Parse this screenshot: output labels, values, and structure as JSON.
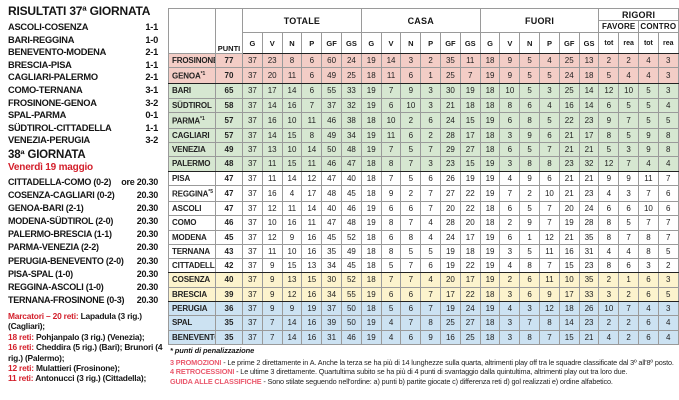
{
  "colors": {
    "accent_red": "#d31f2b",
    "note_label_red": "#ea5a6e",
    "zone_promotion": "#f3cdc6",
    "zone_playoff": "#d6e7d1",
    "zone_playout": "#fcf3cd",
    "zone_relegation": "#cce2f2"
  },
  "results_section": {
    "title": "RISULTATI 37ª GIORNATA",
    "matches": [
      {
        "teams": "ASCOLI-COSENZA",
        "score": "1-1"
      },
      {
        "teams": "BARI-REGGINA",
        "score": "1-0"
      },
      {
        "teams": "BENEVENTO-MODENA",
        "score": "2-1"
      },
      {
        "teams": "BRESCIA-PISA",
        "score": "1-1"
      },
      {
        "teams": "CAGLIARI-PALERMO",
        "score": "2-1"
      },
      {
        "teams": "COMO-TERNANA",
        "score": "3-1"
      },
      {
        "teams": "FROSINONE-GENOA",
        "score": "3-2"
      },
      {
        "teams": "SPAL-PARMA",
        "score": "0-1"
      },
      {
        "teams": "SÜDTIROL-CITTADELLA",
        "score": "1-1"
      },
      {
        "teams": "VENEZIA-PERUGIA",
        "score": "3-2"
      }
    ]
  },
  "fixtures_section": {
    "title": "38ª GIORNATA",
    "date": "Venerdì 19 maggio",
    "matches": [
      {
        "teams": "CITTADELLA-COMO (0-2)",
        "time": "ore 20.30"
      },
      {
        "teams": "COSENZA-CAGLIARI (0-2)",
        "time": "20.30"
      },
      {
        "teams": "GENOA-BARI (2-1)",
        "time": "20.30"
      },
      {
        "teams": "MODENA-SÜDTIROL (2-0)",
        "time": "20.30"
      },
      {
        "teams": "PALERMO-BRESCIA (1-1)",
        "time": "20.30"
      },
      {
        "teams": "PARMA-VENEZIA (2-2)",
        "time": "20.30"
      },
      {
        "teams": "PERUGIA-BENEVENTO (2-0)",
        "time": "20.30"
      },
      {
        "teams": "PISA-SPAL (1-0)",
        "time": "20.30"
      },
      {
        "teams": "REGGINA-ASCOLI (1-0)",
        "time": "20.30"
      },
      {
        "teams": "TERNANA-FROSINONE (0-3)",
        "time": "20.30"
      }
    ]
  },
  "scorers_section": {
    "lines": [
      {
        "red": "Marcatori – 20 reti:",
        "black": " Lapadula (3 rig.) (Cagliari);"
      },
      {
        "red": "18 reti:",
        "black": " Pohjanpalo (3 rig.) (Venezia);"
      },
      {
        "red": "16 reti:",
        "black": " Cheddira (5 rig.) (Bari); Brunori (4 rig.) (Palermo);"
      },
      {
        "red": "12 reti:",
        "black": " Mulattieri (Frosinone);"
      },
      {
        "red": "11 reti:",
        "black": " Antonucci (3 rig.) (Cittadella);"
      }
    ]
  },
  "standings": {
    "punti_label": "PUNTI",
    "group_headers": {
      "totale": "TOTALE",
      "casa": "CASA",
      "fuori": "FUORI",
      "rigori": "RIGORI",
      "favore": "FAVORE",
      "contro": "CONTRO"
    },
    "stat_cols": [
      "G",
      "V",
      "N",
      "P",
      "GF",
      "GS"
    ],
    "rigori_cols": [
      "tot",
      "rea",
      "tot",
      "rea"
    ],
    "rows": [
      {
        "team": "FROSINONE",
        "marker": "",
        "punti": 77,
        "zone": "promotion",
        "totale": [
          37,
          23,
          8,
          6,
          60,
          24
        ],
        "casa": [
          19,
          14,
          3,
          2,
          35,
          11
        ],
        "fuori": [
          18,
          9,
          5,
          4,
          25,
          13
        ],
        "rigori": [
          2,
          2,
          4,
          3
        ]
      },
      {
        "team": "GENOA",
        "marker": "*1",
        "punti": 70,
        "zone": "promotion",
        "totale": [
          37,
          20,
          11,
          6,
          49,
          25
        ],
        "casa": [
          18,
          11,
          6,
          1,
          25,
          7
        ],
        "fuori": [
          19,
          9,
          5,
          5,
          24,
          18
        ],
        "rigori": [
          5,
          4,
          4,
          3
        ]
      },
      {
        "team": "BARI",
        "marker": "",
        "punti": 65,
        "zone": "playoff",
        "totale": [
          37,
          17,
          14,
          6,
          55,
          33
        ],
        "casa": [
          19,
          7,
          9,
          3,
          30,
          19
        ],
        "fuori": [
          18,
          10,
          5,
          3,
          25,
          14
        ],
        "rigori": [
          12,
          10,
          5,
          3
        ]
      },
      {
        "team": "SÜDTIROL",
        "marker": "",
        "punti": 58,
        "zone": "playoff",
        "totale": [
          37,
          14,
          16,
          7,
          37,
          32
        ],
        "casa": [
          19,
          6,
          10,
          3,
          21,
          18
        ],
        "fuori": [
          18,
          8,
          6,
          4,
          16,
          14
        ],
        "rigori": [
          6,
          5,
          5,
          4
        ]
      },
      {
        "team": "PARMA",
        "marker": "*1",
        "punti": 57,
        "zone": "playoff",
        "totale": [
          37,
          16,
          10,
          11,
          46,
          38
        ],
        "casa": [
          18,
          10,
          2,
          6,
          24,
          15
        ],
        "fuori": [
          19,
          6,
          8,
          5,
          22,
          23
        ],
        "rigori": [
          9,
          7,
          5,
          5
        ]
      },
      {
        "team": "CAGLIARI",
        "marker": "",
        "punti": 57,
        "zone": "playoff",
        "totale": [
          37,
          14,
          15,
          8,
          49,
          34
        ],
        "casa": [
          19,
          11,
          6,
          2,
          28,
          17
        ],
        "fuori": [
          18,
          3,
          9,
          6,
          21,
          17
        ],
        "rigori": [
          8,
          5,
          9,
          8
        ]
      },
      {
        "team": "VENEZIA",
        "marker": "",
        "punti": 49,
        "zone": "playoff",
        "totale": [
          37,
          13,
          10,
          14,
          50,
          48
        ],
        "casa": [
          19,
          7,
          5,
          7,
          29,
          27
        ],
        "fuori": [
          18,
          6,
          5,
          7,
          21,
          21
        ],
        "rigori": [
          5,
          3,
          9,
          8
        ]
      },
      {
        "team": "PALERMO",
        "marker": "",
        "punti": 48,
        "zone": "playoff",
        "totale": [
          37,
          11,
          15,
          11,
          46,
          47
        ],
        "casa": [
          18,
          8,
          7,
          3,
          23,
          15
        ],
        "fuori": [
          19,
          3,
          8,
          8,
          23,
          32
        ],
        "rigori": [
          12,
          7,
          4,
          4
        ]
      },
      {
        "team": "PISA",
        "marker": "",
        "punti": 47,
        "zone": "none",
        "totale": [
          37,
          11,
          14,
          12,
          47,
          40
        ],
        "casa": [
          18,
          7,
          5,
          6,
          26,
          19
        ],
        "fuori": [
          19,
          4,
          9,
          6,
          21,
          21
        ],
        "rigori": [
          9,
          9,
          11,
          7
        ]
      },
      {
        "team": "REGGINA",
        "marker": "*5",
        "punti": 47,
        "zone": "none",
        "totale": [
          37,
          16,
          4,
          17,
          48,
          45
        ],
        "casa": [
          18,
          9,
          2,
          7,
          27,
          22
        ],
        "fuori": [
          19,
          7,
          2,
          10,
          21,
          23
        ],
        "rigori": [
          4,
          3,
          7,
          6
        ]
      },
      {
        "team": "ASCOLI",
        "marker": "",
        "punti": 47,
        "zone": "none",
        "totale": [
          37,
          12,
          11,
          14,
          40,
          46
        ],
        "casa": [
          19,
          6,
          6,
          7,
          20,
          22
        ],
        "fuori": [
          18,
          6,
          5,
          7,
          20,
          24
        ],
        "rigori": [
          6,
          6,
          10,
          6
        ]
      },
      {
        "team": "COMO",
        "marker": "",
        "punti": 46,
        "zone": "none",
        "totale": [
          37,
          10,
          16,
          11,
          47,
          48
        ],
        "casa": [
          19,
          8,
          7,
          4,
          28,
          20
        ],
        "fuori": [
          18,
          2,
          9,
          7,
          19,
          28
        ],
        "rigori": [
          8,
          5,
          7,
          7
        ]
      },
      {
        "team": "MODENA",
        "marker": "",
        "punti": 45,
        "zone": "none",
        "totale": [
          37,
          12,
          9,
          16,
          45,
          52
        ],
        "casa": [
          18,
          6,
          8,
          4,
          24,
          17
        ],
        "fuori": [
          19,
          6,
          1,
          12,
          21,
          35
        ],
        "rigori": [
          8,
          7,
          8,
          7
        ]
      },
      {
        "team": "TERNANA",
        "marker": "",
        "punti": 43,
        "zone": "none",
        "totale": [
          37,
          11,
          10,
          16,
          35,
          49
        ],
        "casa": [
          18,
          8,
          5,
          5,
          19,
          18
        ],
        "fuori": [
          19,
          3,
          5,
          11,
          16,
          31
        ],
        "rigori": [
          4,
          4,
          8,
          5
        ]
      },
      {
        "team": "CITTADELLA",
        "marker": "",
        "punti": 42,
        "zone": "none",
        "totale": [
          37,
          9,
          15,
          13,
          34,
          45
        ],
        "casa": [
          18,
          5,
          7,
          6,
          19,
          22
        ],
        "fuori": [
          19,
          4,
          8,
          7,
          15,
          23
        ],
        "rigori": [
          8,
          6,
          3,
          2
        ]
      },
      {
        "team": "COSENZA",
        "marker": "",
        "punti": 40,
        "zone": "playout",
        "totale": [
          37,
          9,
          13,
          15,
          30,
          52
        ],
        "casa": [
          18,
          7,
          7,
          4,
          20,
          17
        ],
        "fuori": [
          19,
          2,
          6,
          11,
          10,
          35
        ],
        "rigori": [
          2,
          1,
          6,
          3
        ]
      },
      {
        "team": "BRESCIA",
        "marker": "",
        "punti": 39,
        "zone": "playout",
        "totale": [
          37,
          9,
          12,
          16,
          34,
          55
        ],
        "casa": [
          19,
          6,
          6,
          7,
          17,
          22
        ],
        "fuori": [
          18,
          3,
          6,
          9,
          17,
          33
        ],
        "rigori": [
          3,
          2,
          6,
          5
        ]
      },
      {
        "team": "PERUGIA",
        "marker": "",
        "punti": 36,
        "zone": "relegation",
        "totale": [
          37,
          9,
          9,
          19,
          37,
          50
        ],
        "casa": [
          18,
          5,
          6,
          7,
          19,
          24
        ],
        "fuori": [
          19,
          4,
          3,
          12,
          18,
          26
        ],
        "rigori": [
          10,
          7,
          4,
          3
        ]
      },
      {
        "team": "SPAL",
        "marker": "",
        "punti": 35,
        "zone": "relegation",
        "totale": [
          37,
          7,
          14,
          16,
          39,
          50
        ],
        "casa": [
          19,
          4,
          7,
          8,
          25,
          27
        ],
        "fuori": [
          18,
          3,
          7,
          8,
          14,
          23
        ],
        "rigori": [
          2,
          2,
          6,
          4
        ]
      },
      {
        "team": "BENEVENTO",
        "marker": "",
        "punti": 35,
        "zone": "relegation",
        "totale": [
          37,
          7,
          14,
          16,
          31,
          46
        ],
        "casa": [
          19,
          4,
          6,
          9,
          16,
          25
        ],
        "fuori": [
          18,
          3,
          8,
          7,
          15,
          21
        ],
        "rigori": [
          4,
          2,
          6,
          4
        ]
      }
    ]
  },
  "footnotes": {
    "penalty": "* punti di penalizzazione",
    "notes": [
      {
        "label": "3 PROMOZIONI",
        "text": " - Le prime 2 direttamente in A. Anche la terza se ha più di 14 lunghezze sulla quarta, altrimenti play off tra le squadre classificate dal 3º all'8º posto."
      },
      {
        "label": "4 RETROCESSIONI",
        "text": " - Le ultime 3 direttamente. Quartultima subito se ha più di 4 punti di svantaggio dalla quintultima, altrimenti play out tra loro due."
      },
      {
        "label": "GUIDA ALLE CLASSIFICHE",
        "text": " - Sono stilate seguendo nell'ordine: a) punti b) partite giocate c) differenza reti d) gol realizzati e) ordine alfabetico."
      }
    ]
  }
}
